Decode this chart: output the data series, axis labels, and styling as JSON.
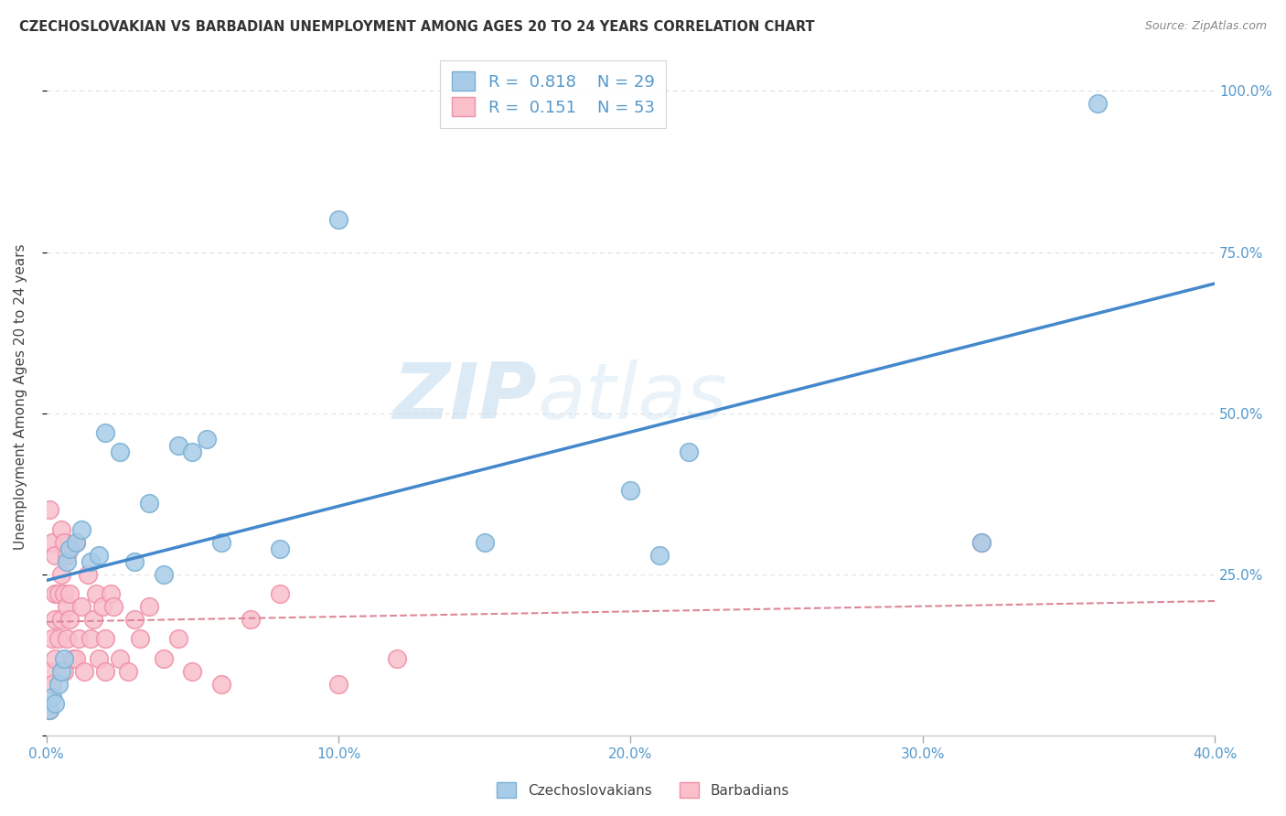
{
  "title": "CZECHOSLOVAKIAN VS BARBADIAN UNEMPLOYMENT AMONG AGES 20 TO 24 YEARS CORRELATION CHART",
  "source": "Source: ZipAtlas.com",
  "ylabel": "Unemployment Among Ages 20 to 24 years",
  "xlim": [
    0.0,
    0.4
  ],
  "ylim": [
    0.0,
    1.05
  ],
  "xticks": [
    0.0,
    0.1,
    0.2,
    0.3,
    0.4
  ],
  "xticklabels": [
    "0.0%",
    "10.0%",
    "20.0%",
    "30.0%",
    "40.0%"
  ],
  "yticks": [
    0.0,
    0.25,
    0.5,
    0.75,
    1.0
  ],
  "yticklabels": [
    "",
    "25.0%",
    "50.0%",
    "75.0%",
    "100.0%"
  ],
  "blue_scatter_color": "#a8cce8",
  "blue_scatter_edge": "#7ab0d4",
  "pink_scatter_color": "#f9c0cc",
  "pink_scatter_edge": "#f090a8",
  "blue_line_color": "#4488cc",
  "pink_line_color": "#dd8899",
  "grid_color": "#e0e0e0",
  "background_color": "#ffffff",
  "watermark": "ZIPatlas",
  "tick_color": "#5599cc",
  "czecho_x": [
    0.001,
    0.002,
    0.003,
    0.004,
    0.005,
    0.006,
    0.007,
    0.008,
    0.01,
    0.012,
    0.015,
    0.018,
    0.02,
    0.025,
    0.03,
    0.035,
    0.04,
    0.045,
    0.05,
    0.055,
    0.06,
    0.08,
    0.1,
    0.15,
    0.2,
    0.21,
    0.22,
    0.32,
    0.36
  ],
  "czecho_y": [
    0.04,
    0.06,
    0.05,
    0.08,
    0.1,
    0.12,
    0.27,
    0.29,
    0.3,
    0.32,
    0.27,
    0.28,
    0.47,
    0.44,
    0.27,
    0.36,
    0.25,
    0.45,
    0.44,
    0.46,
    0.3,
    0.29,
    0.8,
    0.3,
    0.38,
    0.28,
    0.44,
    0.3,
    0.98
  ],
  "barbadian_x": [
    0.001,
    0.001,
    0.001,
    0.002,
    0.002,
    0.002,
    0.003,
    0.003,
    0.003,
    0.003,
    0.004,
    0.004,
    0.005,
    0.005,
    0.005,
    0.006,
    0.006,
    0.006,
    0.007,
    0.007,
    0.007,
    0.008,
    0.008,
    0.009,
    0.01,
    0.01,
    0.011,
    0.012,
    0.013,
    0.014,
    0.015,
    0.016,
    0.017,
    0.018,
    0.019,
    0.02,
    0.02,
    0.022,
    0.023,
    0.025,
    0.028,
    0.03,
    0.032,
    0.035,
    0.04,
    0.045,
    0.05,
    0.06,
    0.07,
    0.08,
    0.1,
    0.12,
    0.32
  ],
  "barbadian_y": [
    0.04,
    0.35,
    0.1,
    0.08,
    0.3,
    0.15,
    0.12,
    0.28,
    0.22,
    0.18,
    0.15,
    0.22,
    0.18,
    0.32,
    0.25,
    0.1,
    0.22,
    0.3,
    0.2,
    0.15,
    0.28,
    0.22,
    0.18,
    0.12,
    0.12,
    0.3,
    0.15,
    0.2,
    0.1,
    0.25,
    0.15,
    0.18,
    0.22,
    0.12,
    0.2,
    0.15,
    0.1,
    0.22,
    0.2,
    0.12,
    0.1,
    0.18,
    0.15,
    0.2,
    0.12,
    0.15,
    0.1,
    0.08,
    0.18,
    0.22,
    0.08,
    0.12,
    0.3
  ]
}
